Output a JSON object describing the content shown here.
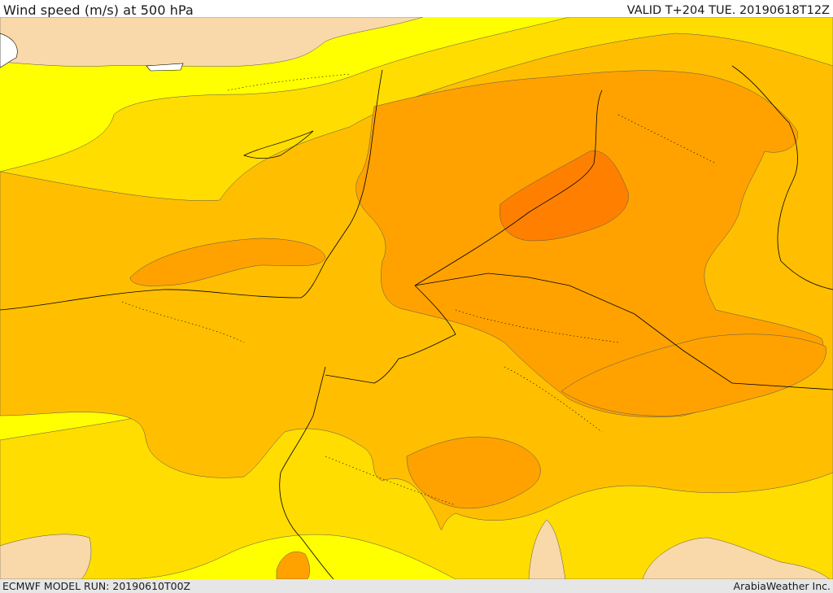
{
  "header": {
    "title": "Wind speed (m/s) at 500 hPa",
    "valid": "VALID T+204 TUE. 20190618T12Z"
  },
  "footer": {
    "model_run": "ECMWF MODEL RUN: 20190610T00Z",
    "credit": "ArabiaWeather Inc."
  },
  "map": {
    "field": "wind speed at 500 hPa",
    "colors": {
      "sea_background": "#ffffff",
      "land_low": "#f9d9a9",
      "band_1": "#ffff00",
      "band_2": "#ffdd00",
      "band_3": "#ffbf00",
      "band_4": "#ffa200",
      "band_5": "#ff8000",
      "coastline": "#000000"
    }
  }
}
